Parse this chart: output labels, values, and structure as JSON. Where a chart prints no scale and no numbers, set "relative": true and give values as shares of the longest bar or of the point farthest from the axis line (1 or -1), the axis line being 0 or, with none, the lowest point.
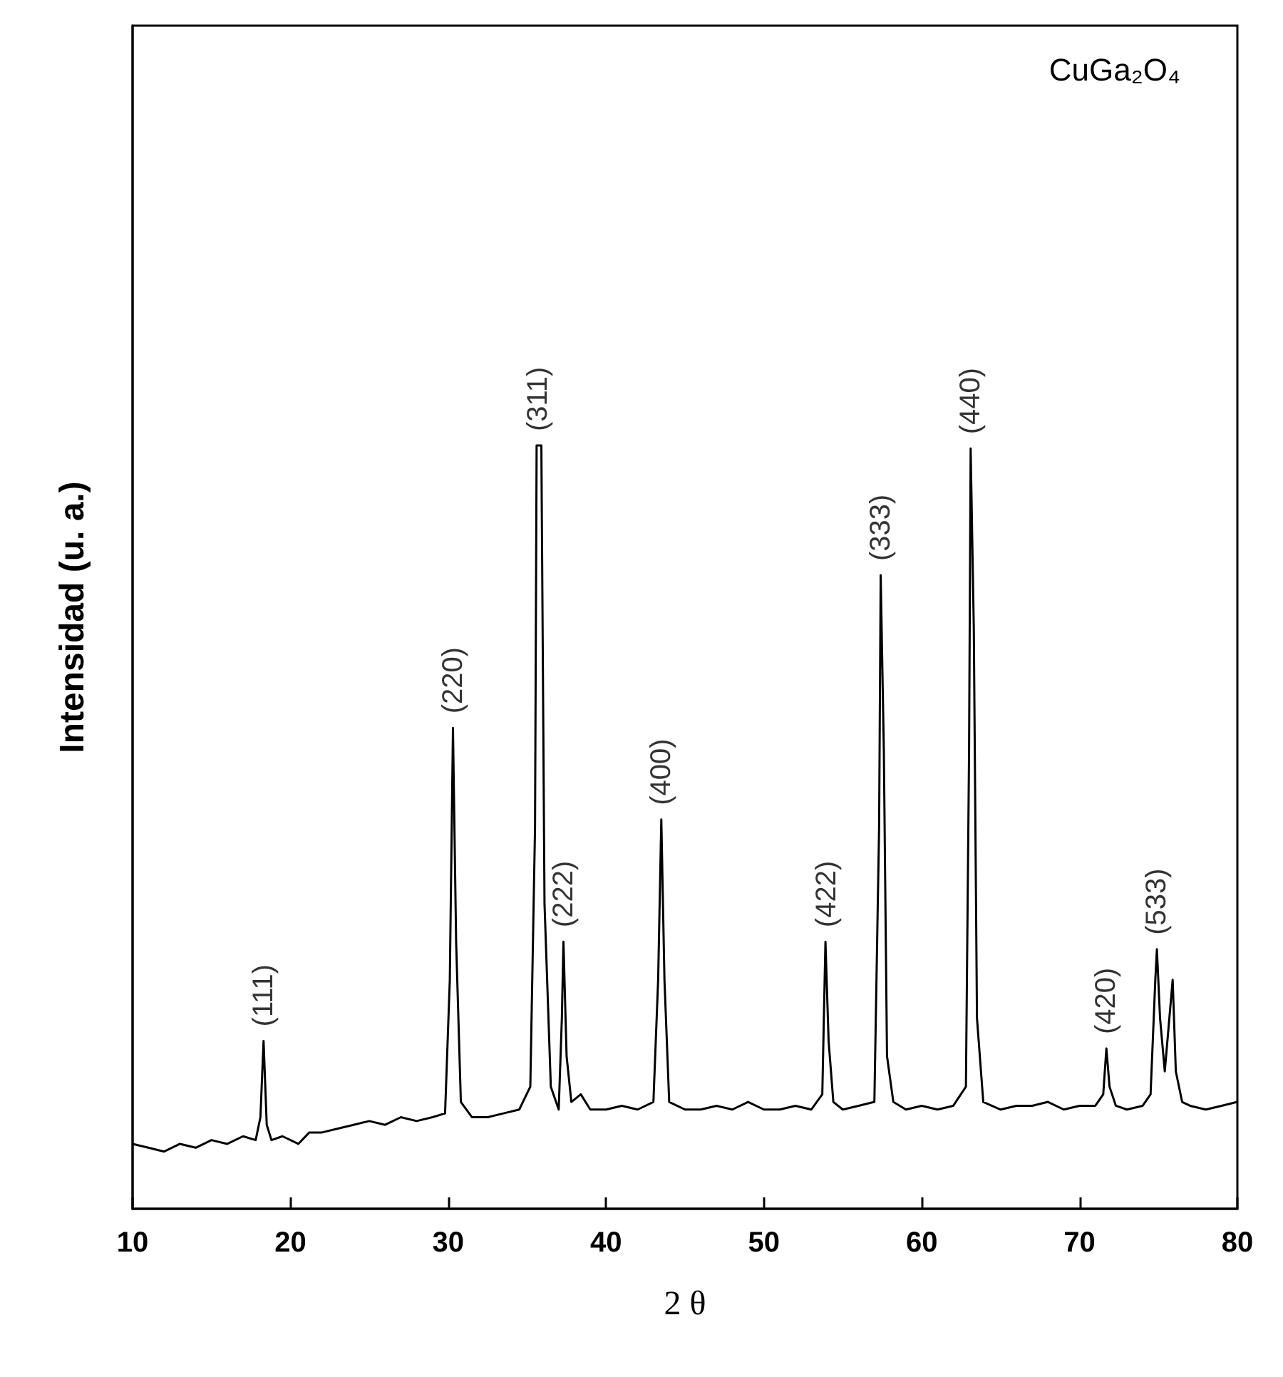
{
  "chart_data": {
    "type": "line",
    "relative": true,
    "xlabel": "2 θ",
    "ylabel": "Intensidad (u. a.)",
    "xlim": [
      10,
      80
    ],
    "xticks": [
      10,
      20,
      30,
      40,
      50,
      60,
      70,
      80
    ],
    "grid": false,
    "marker": "none",
    "line_style": "solid",
    "annotations": [
      "CuGa₂O₄",
      {
        "text": "(111)",
        "x": 18.3,
        "y": 0.22
      },
      {
        "text": "(220)",
        "x": 30.3,
        "y": 0.63
      },
      {
        "text": "(311)",
        "x": 35.7,
        "y": 1.0
      },
      {
        "text": "(222)",
        "x": 37.3,
        "y": 0.35
      },
      {
        "text": "(400)",
        "x": 43.5,
        "y": 0.51
      },
      {
        "text": "(422)",
        "x": 54.0,
        "y": 0.35
      },
      {
        "text": "(333)",
        "x": 57.4,
        "y": 0.83
      },
      {
        "text": "(440)",
        "x": 63.1,
        "y": 0.996
      },
      {
        "text": "(420)",
        "x": 71.7,
        "y": 0.21
      },
      {
        "text": "(533)",
        "x": 74.9,
        "y": 0.34
      }
    ],
    "series": [
      {
        "color": "#000000",
        "x": [
          10,
          11,
          12,
          13,
          14,
          15,
          16,
          17,
          17.8,
          18.1,
          18.3,
          18.5,
          18.8,
          19.5,
          20.5,
          21.2,
          22,
          23,
          24,
          25,
          26,
          27,
          28,
          29,
          29.8,
          30.1,
          30.3,
          30.5,
          30.8,
          31.5,
          32.5,
          33.5,
          34.5,
          35.2,
          35.5,
          35.6,
          35.9,
          36.1,
          36.5,
          37.0,
          37.2,
          37.3,
          37.5,
          37.8,
          38.4,
          39,
          40,
          41,
          42,
          43,
          43.3,
          43.5,
          43.7,
          44,
          45,
          46,
          47,
          48,
          49,
          50,
          51,
          52,
          53,
          53.7,
          53.9,
          54.1,
          54.4,
          55,
          56,
          57,
          57.3,
          57.4,
          57.6,
          57.8,
          58.2,
          59,
          60,
          61,
          62,
          62.8,
          63.0,
          63.1,
          63.3,
          63.5,
          63.9,
          65,
          66,
          67,
          68,
          69,
          70,
          71,
          71.5,
          71.7,
          71.9,
          72.3,
          73,
          74,
          74.5,
          74.8,
          74.9,
          75.1,
          75.4,
          75.9,
          76.1,
          76.5,
          77,
          78,
          79,
          80
        ],
        "values": [
          0.085,
          0.08,
          0.075,
          0.085,
          0.08,
          0.09,
          0.085,
          0.095,
          0.09,
          0.12,
          0.22,
          0.11,
          0.09,
          0.095,
          0.085,
          0.1,
          0.1,
          0.105,
          0.11,
          0.115,
          0.11,
          0.12,
          0.115,
          0.12,
          0.125,
          0.3,
          0.63,
          0.35,
          0.14,
          0.12,
          0.12,
          0.125,
          0.13,
          0.16,
          0.5,
          1.0,
          1.0,
          0.4,
          0.16,
          0.13,
          0.25,
          0.35,
          0.2,
          0.14,
          0.15,
          0.13,
          0.13,
          0.135,
          0.13,
          0.14,
          0.3,
          0.51,
          0.3,
          0.14,
          0.13,
          0.13,
          0.135,
          0.13,
          0.14,
          0.13,
          0.13,
          0.135,
          0.13,
          0.15,
          0.35,
          0.22,
          0.14,
          0.13,
          0.135,
          0.14,
          0.5,
          0.83,
          0.6,
          0.2,
          0.14,
          0.13,
          0.135,
          0.13,
          0.135,
          0.16,
          0.6,
          0.996,
          0.76,
          0.25,
          0.14,
          0.13,
          0.135,
          0.135,
          0.14,
          0.13,
          0.135,
          0.135,
          0.15,
          0.21,
          0.16,
          0.135,
          0.13,
          0.135,
          0.15,
          0.3,
          0.34,
          0.25,
          0.18,
          0.3,
          0.18,
          0.14,
          0.135,
          0.13,
          0.135,
          0.14
        ]
      }
    ]
  }
}
